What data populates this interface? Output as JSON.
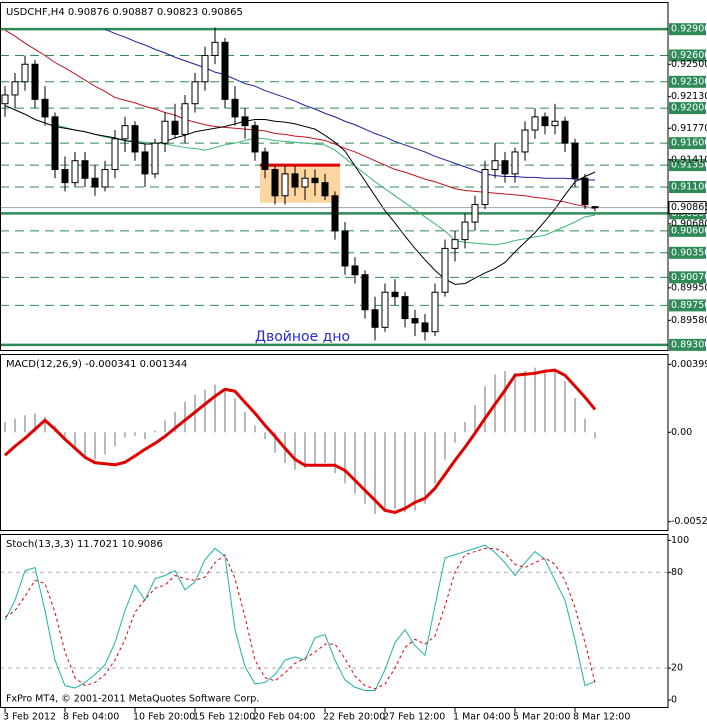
{
  "chart_data": [
    {
      "type": "candlestick",
      "title": "USDCHF,H4  0.90876 0.90887 0.90823 0.90865",
      "open": [
        0.9205,
        0.9215,
        0.923,
        0.925,
        0.921,
        0.919,
        0.913,
        0.9115,
        0.914,
        0.912,
        0.911,
        0.913,
        0.9165,
        0.918,
        0.915,
        0.9125,
        0.916,
        0.9185,
        0.917,
        0.9205,
        0.923,
        0.926,
        0.9275,
        0.921,
        0.919,
        0.918,
        0.915,
        0.913,
        0.91,
        0.9125,
        0.911,
        0.912,
        0.9115,
        0.91,
        0.906,
        0.902,
        0.901,
        0.897,
        0.895,
        0.899,
        0.8985,
        0.896,
        0.8955,
        0.8945,
        0.899,
        0.904,
        0.905,
        0.907,
        0.909,
        0.913,
        0.914,
        0.9125,
        0.915,
        0.9175,
        0.919,
        0.918,
        0.9185,
        0.916,
        0.912,
        0.90876
      ],
      "high": [
        0.9225,
        0.924,
        0.926,
        0.9255,
        0.9225,
        0.9195,
        0.9145,
        0.915,
        0.915,
        0.9135,
        0.914,
        0.9175,
        0.919,
        0.9185,
        0.916,
        0.9165,
        0.9195,
        0.9205,
        0.9215,
        0.924,
        0.927,
        0.9292,
        0.928,
        0.9225,
        0.92,
        0.9185,
        0.9155,
        0.9135,
        0.9135,
        0.9135,
        0.913,
        0.913,
        0.9125,
        0.9105,
        0.907,
        0.903,
        0.9015,
        0.8985,
        0.9,
        0.9005,
        0.899,
        0.897,
        0.8965,
        0.9,
        0.905,
        0.906,
        0.908,
        0.91,
        0.914,
        0.916,
        0.915,
        0.9155,
        0.9185,
        0.92,
        0.9195,
        0.9205,
        0.919,
        0.9165,
        0.9125,
        0.90887
      ],
      "low": [
        0.919,
        0.92,
        0.922,
        0.92,
        0.918,
        0.912,
        0.9105,
        0.911,
        0.911,
        0.91,
        0.9105,
        0.912,
        0.915,
        0.914,
        0.911,
        0.912,
        0.915,
        0.9165,
        0.916,
        0.9195,
        0.922,
        0.925,
        0.92,
        0.918,
        0.9165,
        0.914,
        0.912,
        0.909,
        0.909,
        0.91,
        0.9095,
        0.91,
        0.9095,
        0.905,
        0.901,
        0.9,
        0.896,
        0.8935,
        0.8945,
        0.8975,
        0.895,
        0.894,
        0.8935,
        0.894,
        0.8985,
        0.9025,
        0.904,
        0.906,
        0.9085,
        0.912,
        0.9115,
        0.9115,
        0.914,
        0.9165,
        0.917,
        0.917,
        0.915,
        0.911,
        0.9085,
        0.90823
      ],
      "close": [
        0.9215,
        0.923,
        0.925,
        0.921,
        0.919,
        0.913,
        0.9115,
        0.914,
        0.912,
        0.911,
        0.913,
        0.9165,
        0.918,
        0.915,
        0.9125,
        0.916,
        0.9185,
        0.917,
        0.9205,
        0.923,
        0.926,
        0.9275,
        0.921,
        0.919,
        0.918,
        0.915,
        0.913,
        0.91,
        0.9125,
        0.911,
        0.912,
        0.9115,
        0.91,
        0.906,
        0.902,
        0.901,
        0.897,
        0.895,
        0.899,
        0.8985,
        0.896,
        0.8955,
        0.8945,
        0.899,
        0.904,
        0.905,
        0.907,
        0.909,
        0.913,
        0.914,
        0.9125,
        0.915,
        0.9175,
        0.919,
        0.918,
        0.9185,
        0.916,
        0.912,
        0.909,
        0.90865
      ],
      "up_color": "#ffffff",
      "down_color": "#000000",
      "wick_color": "#000000",
      "moving_averages": [
        {
          "color": "#1e1e9c",
          "values": [
            null,
            null,
            null,
            null,
            null,
            null,
            null,
            null,
            null,
            null,
            0.929,
            0.9285,
            0.9281,
            0.9276,
            0.9272,
            0.9267,
            0.9263,
            0.9258,
            0.9254,
            0.925,
            0.9246,
            0.9241,
            0.9238,
            0.9233,
            0.9228,
            0.9225,
            0.922,
            0.9216,
            0.9212,
            0.9208,
            0.9203,
            0.9199,
            0.9194,
            0.919,
            0.9185,
            0.9181,
            0.9176,
            0.9171,
            0.9167,
            0.9162,
            0.9158,
            0.9154,
            0.915,
            0.9145,
            0.9141,
            0.9137,
            0.9133,
            0.9129,
            0.9125,
            0.9123,
            0.9122,
            0.9122,
            0.9121,
            0.9121,
            0.912,
            0.912,
            0.912,
            0.9119,
            0.9118,
            0.9118
          ]
        },
        {
          "color": "#c0141e",
          "values": [
            0.9289,
            0.9282,
            0.9274,
            0.9267,
            0.926,
            0.9252,
            0.9246,
            0.9239,
            0.9232,
            0.9225,
            0.9219,
            0.9212,
            0.9209,
            0.9206,
            0.9202,
            0.9199,
            0.9195,
            0.9192,
            0.9187,
            0.9184,
            0.9181,
            0.9179,
            0.9178,
            0.9177,
            0.9176,
            0.9175,
            0.9174,
            0.9171,
            0.917,
            0.9168,
            0.9167,
            0.9165,
            0.9163,
            0.9159,
            0.9154,
            0.915,
            0.9145,
            0.914,
            0.9135,
            0.913,
            0.9127,
            0.9123,
            0.9119,
            0.9116,
            0.9112,
            0.9108,
            0.9106,
            0.9105,
            0.9104,
            0.9103,
            0.9102,
            0.9101,
            0.91,
            0.9098,
            0.9097,
            0.9095,
            0.9093,
            0.909,
            0.9088,
            0.9085
          ]
        },
        {
          "color": "#3cb371",
          "values": [
            null,
            null,
            null,
            null,
            null,
            0.9181,
            0.9178,
            0.9175,
            0.9173,
            0.917,
            0.9167,
            0.9165,
            0.9163,
            0.9162,
            0.9161,
            0.916,
            0.9159,
            0.9157,
            0.9155,
            0.9154,
            0.9152,
            0.9155,
            0.9158,
            0.916,
            0.9163,
            0.9166,
            0.9165,
            0.9163,
            0.9162,
            0.9161,
            0.916,
            0.9159,
            0.9158,
            0.9152,
            0.9143,
            0.9134,
            0.9125,
            0.9116,
            0.9108,
            0.91,
            0.9092,
            0.9084,
            0.9076,
            0.9068,
            0.906,
            0.9049,
            0.9047,
            0.9046,
            0.9045,
            0.9044,
            0.9046,
            0.9049,
            0.9051,
            0.9053,
            0.9055,
            0.906,
            0.9065,
            0.907,
            0.9076,
            0.9078
          ]
        },
        {
          "color": "#000000",
          "values": [
            0.9203,
            0.9198,
            0.9193,
            0.9187,
            0.9183,
            0.9179,
            0.9177,
            0.9175,
            0.9173,
            0.917,
            0.9168,
            0.9166,
            0.9163,
            0.9161,
            0.9159,
            0.9159,
            0.9162,
            0.9166,
            0.9169,
            0.9173,
            0.9175,
            0.9177,
            0.9179,
            0.9182,
            0.9185,
            0.9187,
            0.9187,
            0.9185,
            0.9184,
            0.9182,
            0.9179,
            0.9176,
            0.9169,
            0.9161,
            0.9151,
            0.9134,
            0.9117,
            0.91,
            0.9083,
            0.9069,
            0.9054,
            0.904,
            0.9027,
            0.9015,
            0.9005,
            0.8999,
            0.9,
            0.9006,
            0.9012,
            0.9017,
            0.9024,
            0.9036,
            0.9047,
            0.9058,
            0.9071,
            0.9085,
            0.9101,
            0.9116,
            0.9122,
            0.9127
          ]
        }
      ],
      "levels": [
        {
          "value": 0.929,
          "label": "0.92900",
          "style": "solid"
        },
        {
          "value": 0.926,
          "label": "0.92600",
          "style": "dashed"
        },
        {
          "value": 0.923,
          "label": "0.92300",
          "style": "dashed"
        },
        {
          "value": 0.92,
          "label": "0.92000",
          "style": "dashed"
        },
        {
          "value": 0.916,
          "label": "0.91600",
          "style": "dashed"
        },
        {
          "value": 0.9135,
          "label": "0.91350",
          "style": "dashed"
        },
        {
          "value": 0.911,
          "label": "0.91100",
          "style": "dashed"
        },
        {
          "value": 0.908,
          "label": "0.90800",
          "style": "solid"
        },
        {
          "value": 0.906,
          "label": "0.90600",
          "style": "dashed"
        },
        {
          "value": 0.9035,
          "label": "0.90350",
          "style": "dashed"
        },
        {
          "value": 0.9007,
          "label": "0.90070",
          "style": "dashed"
        },
        {
          "value": 0.8975,
          "label": "0.89750",
          "style": "dashed"
        },
        {
          "value": 0.893,
          "label": "0.89300",
          "style": "solid"
        }
      ],
      "level_color": "#2e8b57",
      "yticks": [
        {
          "value": 0.925,
          "label": "0.92500"
        },
        {
          "value": 0.9213,
          "label": "0.92130"
        },
        {
          "value": 0.9177,
          "label": "0.91770"
        },
        {
          "value": 0.9141,
          "label": "0.91410"
        },
        {
          "value": 0.9068,
          "label": "0.90680"
        },
        {
          "value": 0.8995,
          "label": "0.89950"
        },
        {
          "value": 0.8958,
          "label": "0.89580"
        }
      ],
      "ylim": [
        0.8923,
        0.9321
      ],
      "current_price": {
        "value": 0.90865,
        "label": "0.90865"
      },
      "rectangle": {
        "start": 26,
        "end": 33,
        "top": 0.9135,
        "bottom": 0.9092,
        "fill": "#fcd5a0",
        "edge_color": "#e00000"
      },
      "annotation": "Двойное дно",
      "annotation_color": "#2a2ad0"
    },
    {
      "type": "macd",
      "title": "MACD(12,26,9) -0.000341 0.001344",
      "series": [
        {
          "style": "bar",
          "color": "#b8b8b8",
          "values": [
            0.0006,
            0.0008,
            0.001,
            0.0011,
            0.0009,
            0.0004,
            -0.0004,
            -0.001,
            -0.0014,
            -0.0016,
            -0.0013,
            -0.0008,
            -0.0003,
            -0.0002,
            -0.0004,
            0.0001,
            0.0007,
            0.0012,
            0.0018,
            0.0022,
            0.0025,
            0.0028,
            0.0026,
            0.002,
            0.0012,
            0.0004,
            -0.0004,
            -0.0012,
            -0.0018,
            -0.0022,
            -0.0021,
            -0.0019,
            -0.0018,
            -0.0024,
            -0.003,
            -0.0036,
            -0.0042,
            -0.0048,
            -0.0046,
            -0.0045,
            -0.0047,
            -0.0046,
            -0.0042,
            -0.003,
            -0.0016,
            -0.0006,
            0.0006,
            0.0016,
            0.0027,
            0.0034,
            0.0036,
            0.0035,
            0.0036,
            0.0038,
            0.0036,
            0.0037,
            0.003,
            0.002,
            0.0008,
            -0.000341
          ]
        },
        {
          "style": "line",
          "color": "#e00000",
          "values": [
            -0.00135,
            -0.00082,
            -0.00035,
            0.00018,
            0.00071,
            0.00018,
            -0.00041,
            -0.00094,
            -0.00147,
            -0.00179,
            -0.00185,
            -0.00191,
            -0.00176,
            -0.00139,
            -0.001,
            -0.00065,
            -0.00024,
            0.00024,
            0.00071,
            0.00118,
            0.00165,
            0.00212,
            0.00253,
            0.00241,
            0.00176,
            0.00112,
            0.00041,
            -0.00024,
            -0.00094,
            -0.00159,
            -0.00194,
            -0.00194,
            -0.00194,
            -0.00194,
            -0.00224,
            -0.00282,
            -0.00341,
            -0.004,
            -0.00459,
            -0.00471,
            -0.00447,
            -0.00412,
            -0.00388,
            -0.00329,
            -0.00247,
            -0.00165,
            -0.00088,
            -6e-05,
            0.00082,
            0.00165,
            0.00247,
            0.00335,
            0.00341,
            0.00347,
            0.00359,
            0.00365,
            0.00335,
            0.00271,
            0.00206,
            0.001344
          ]
        }
      ],
      "yticks": [
        {
          "value": 0.00399,
          "label": "0.00399"
        },
        {
          "value": 0,
          "label": "0.00"
        },
        {
          "value": -0.00525,
          "label": "-0.00525"
        }
      ],
      "ylim": [
        -0.0058,
        0.0046
      ]
    },
    {
      "type": "line",
      "title": "Stoch(13,3,3) 11.7021 10.9086",
      "series": [
        {
          "style": "solid",
          "color": "#20b2aa",
          "values": [
            50,
            62.5,
            81,
            83,
            56,
            25,
            9,
            7.5,
            11,
            16,
            22,
            36,
            56,
            72,
            62.5,
            76,
            78,
            81,
            69,
            74,
            88,
            95,
            90,
            44,
            21,
            10,
            11,
            16,
            25,
            27,
            25,
            39,
            41,
            25,
            12.5,
            8,
            6,
            6,
            19,
            36,
            44,
            34,
            28,
            59,
            89,
            91,
            93,
            95,
            97,
            92.5,
            86,
            78,
            86,
            93,
            88,
            75,
            62.5,
            37.5,
            9,
            11.7021
          ]
        },
        {
          "style": "dashed",
          "color": "#e00000",
          "values": [
            52,
            56,
            65,
            75,
            73,
            55,
            30,
            14,
            9,
            11,
            16,
            25,
            38,
            55,
            63,
            70,
            72,
            78,
            76,
            75,
            77,
            86,
            91,
            76,
            52,
            25,
            14,
            12,
            17,
            23,
            26,
            30,
            35,
            35,
            26,
            15,
            9,
            7,
            10,
            20,
            33,
            38,
            35,
            40,
            59,
            80,
            91,
            93,
            95,
            95,
            92,
            85,
            83,
            86,
            89,
            85,
            75,
            58,
            36,
            10.9086
          ]
        }
      ],
      "levels": [
        20,
        80
      ],
      "yticks": [
        100,
        80,
        20,
        0
      ],
      "ylim": [
        -5,
        104
      ],
      "categories": [
        "3 Feb 2012",
        null,
        null,
        null,
        null,
        null,
        "8 Feb 04:00",
        null,
        null,
        null,
        null,
        null,
        null,
        "10 Feb 20:00",
        null,
        null,
        null,
        null,
        null,
        "15 Feb 12:00",
        null,
        null,
        null,
        null,
        null,
        "20 Feb 04:00",
        null,
        null,
        null,
        null,
        null,
        null,
        "22 Feb 20:00",
        null,
        null,
        null,
        null,
        null,
        "27 Feb 12:00",
        null,
        null,
        null,
        null,
        null,
        null,
        "1 Mar 04:00",
        null,
        null,
        null,
        null,
        null,
        "5 Mar 20:00",
        null,
        null,
        null,
        null,
        null,
        "8 Mar 12:00",
        null,
        null
      ],
      "footer": "FxPro MT4, © 2001-2011 MetaQuotes Software Corp."
    }
  ]
}
